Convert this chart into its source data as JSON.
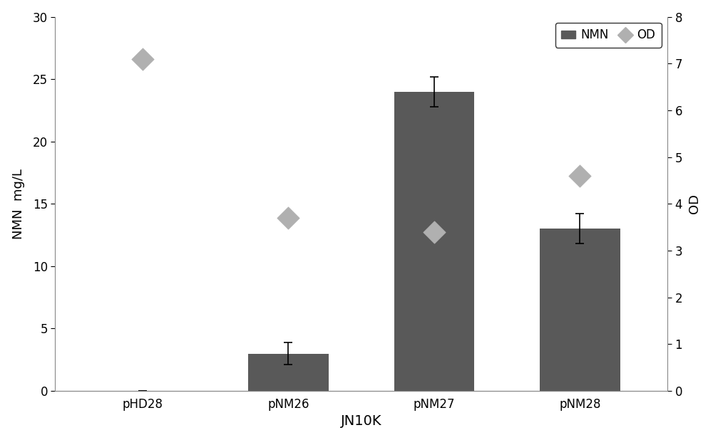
{
  "categories": [
    "pHD28",
    "pNM26",
    "pNM27",
    "pNM28"
  ],
  "bar_values": [
    0,
    3.0,
    24.0,
    13.0
  ],
  "bar_errors": [
    0,
    0.9,
    1.2,
    1.2
  ],
  "od_values": [
    7.1,
    3.7,
    3.4,
    4.6
  ],
  "bar_color": "#595959",
  "od_color": "#b0b0b0",
  "xlabel": "JN10K",
  "ylabel_left": "NMN  mg/L",
  "ylabel_right": "OD",
  "ylim_left": [
    0,
    30
  ],
  "ylim_right": [
    0,
    8
  ],
  "yticks_left": [
    0,
    5,
    10,
    15,
    20,
    25,
    30
  ],
  "yticks_right": [
    0,
    1,
    2,
    3,
    4,
    5,
    6,
    7,
    8
  ],
  "legend_labels": [
    "NMN",
    "OD"
  ],
  "bar_width": 0.55,
  "figsize": [
    10,
    6.18
  ],
  "dpi": 100,
  "background_color": "#ffffff",
  "od_marker": "D",
  "od_markersize": 16,
  "error_capsize": 4,
  "error_linewidth": 1.2,
  "xlim": [
    -0.6,
    3.6
  ]
}
